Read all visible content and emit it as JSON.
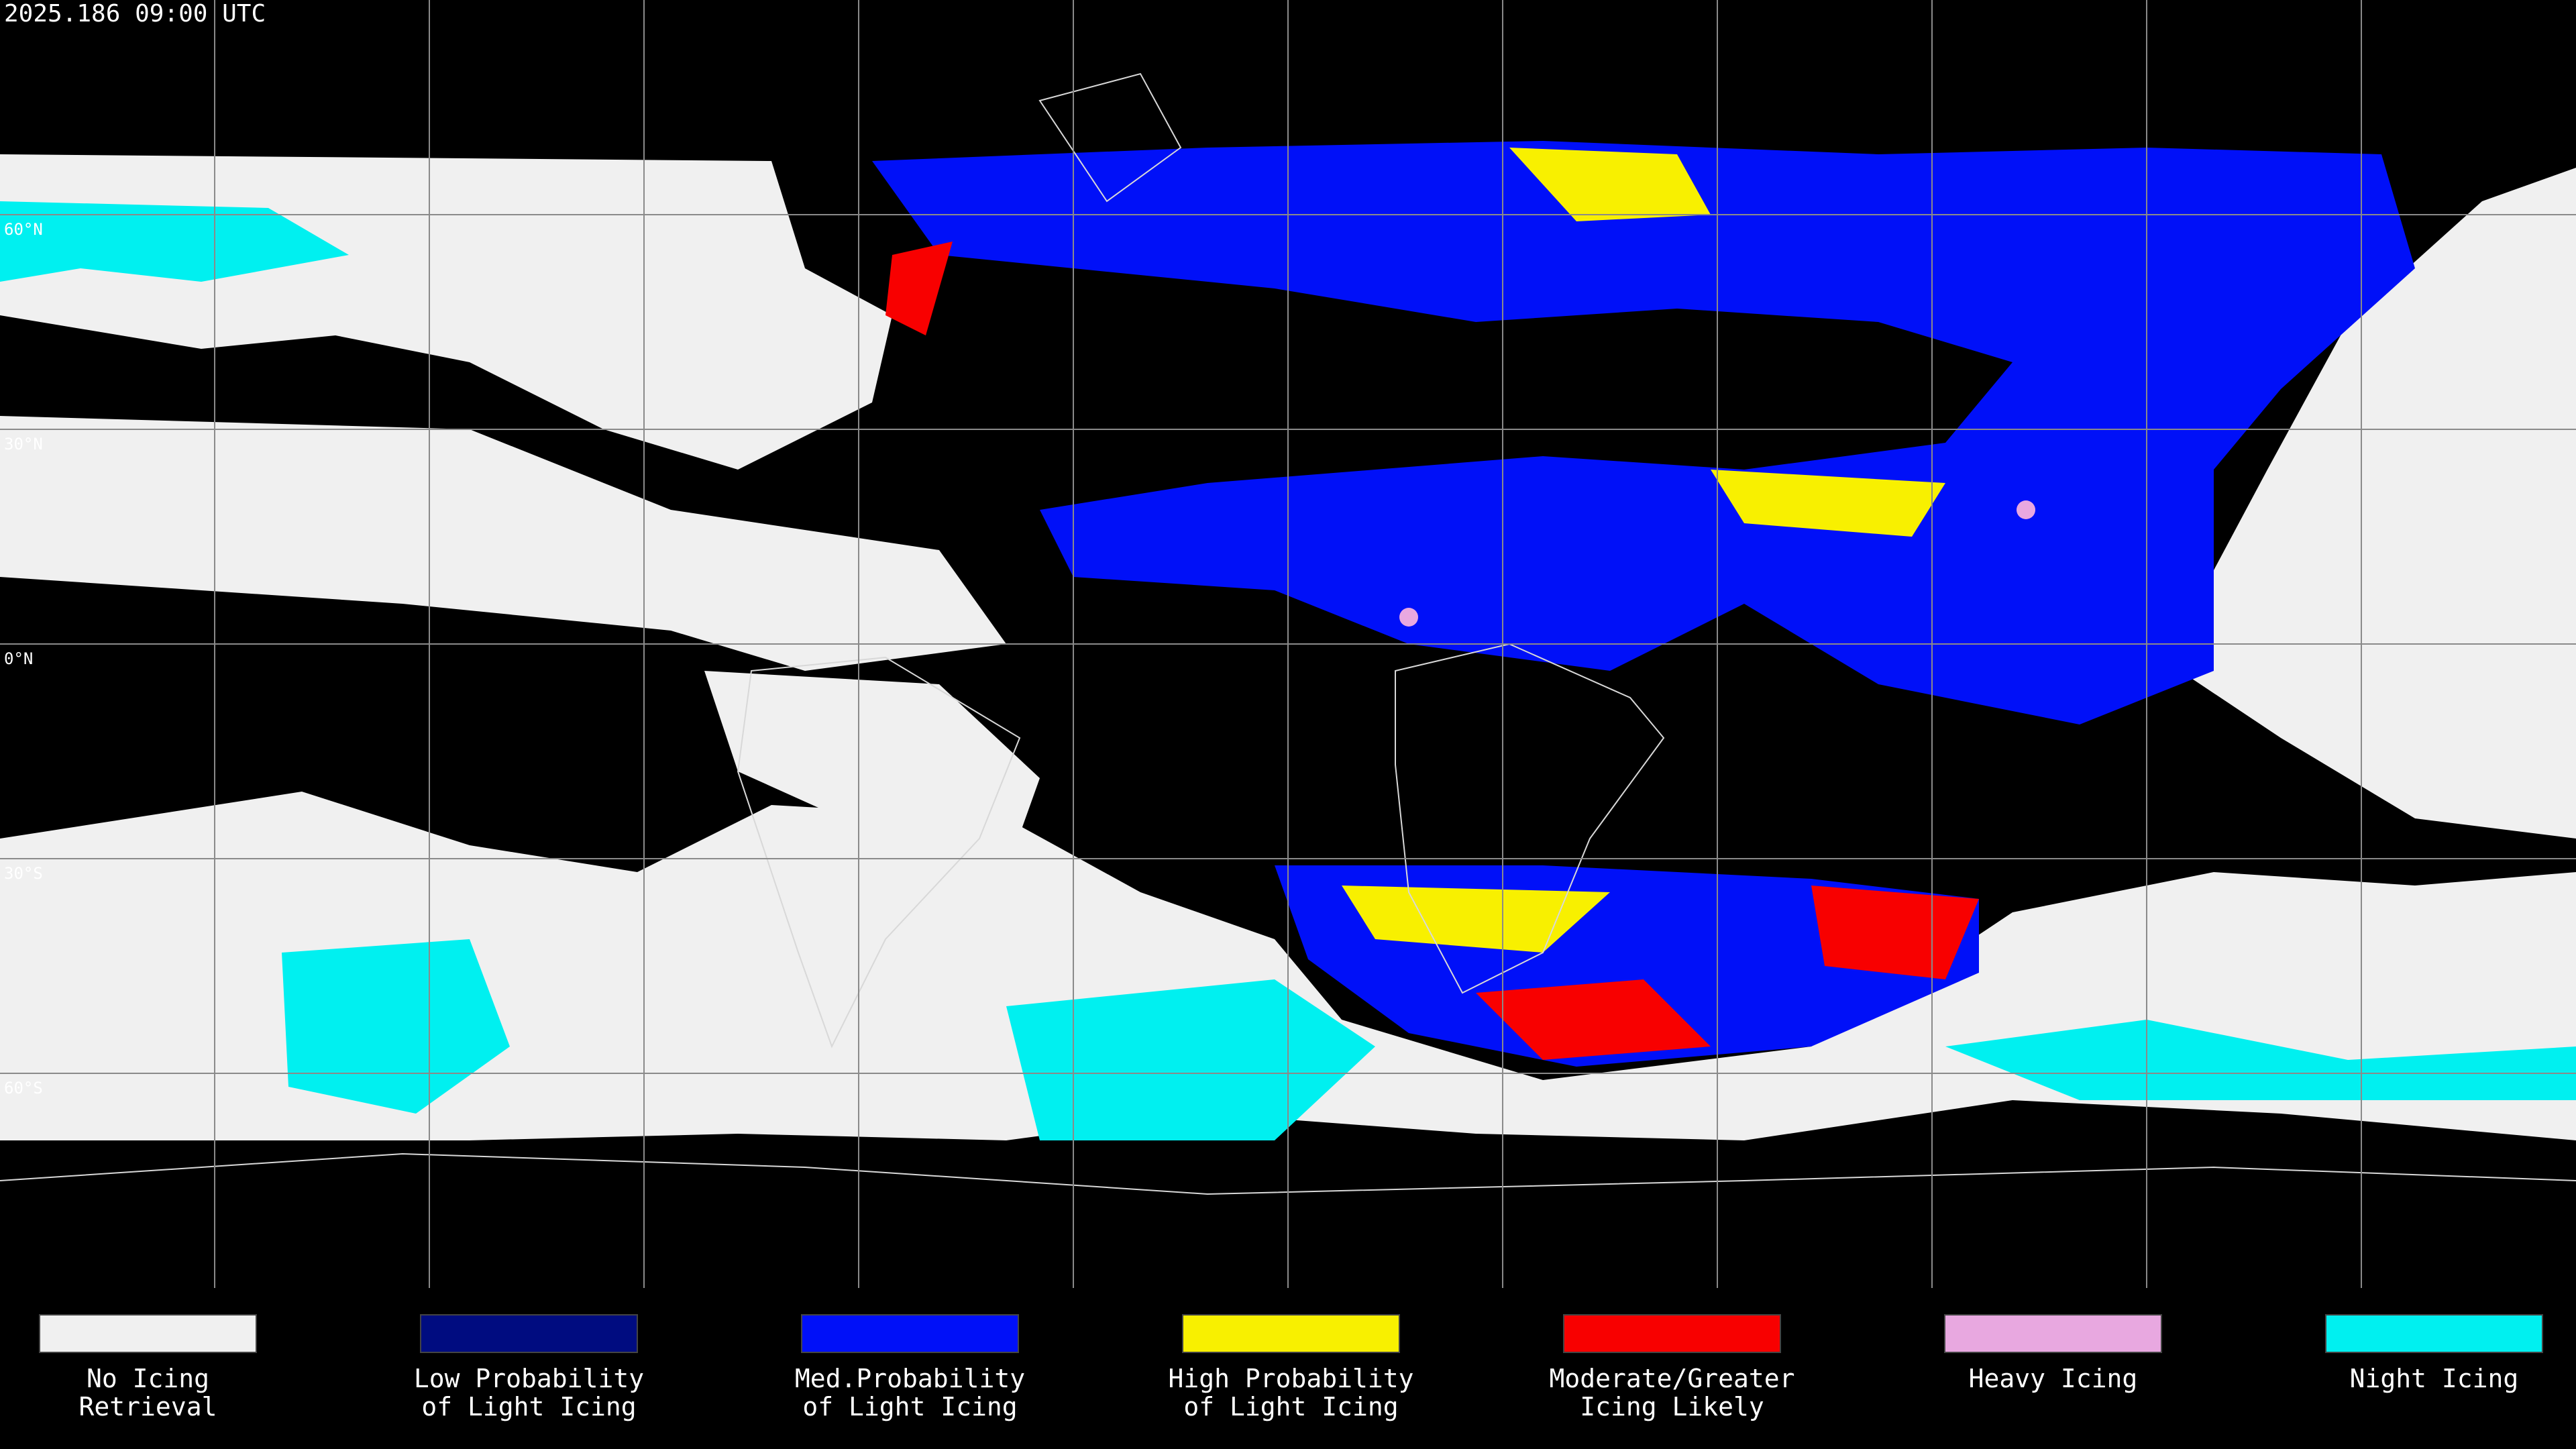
{
  "header": {
    "timestamp": "2025.186 09:00 UTC"
  },
  "grid": {
    "lat_labels": [
      "60°N",
      "30°N",
      "0°N",
      "30°S",
      "60°S"
    ]
  },
  "legend": {
    "items": [
      {
        "lines": [
          "No Icing",
          "Retrieval"
        ],
        "color": "#f0f0f0"
      },
      {
        "lines": [
          "Low Probability",
          "of Light Icing"
        ],
        "color": "#000c80"
      },
      {
        "lines": [
          "Med.Probability",
          "of Light Icing"
        ],
        "color": "#0010f8"
      },
      {
        "lines": [
          "High Probability",
          "of Light Icing"
        ],
        "color": "#f8f000"
      },
      {
        "lines": [
          "Moderate/Greater",
          "Icing Likely"
        ],
        "color": "#f80000"
      },
      {
        "lines": [
          "Heavy Icing"
        ],
        "color": "#e8a8e0"
      },
      {
        "lines": [
          "Night Icing"
        ],
        "color": "#00f0f0"
      }
    ]
  }
}
